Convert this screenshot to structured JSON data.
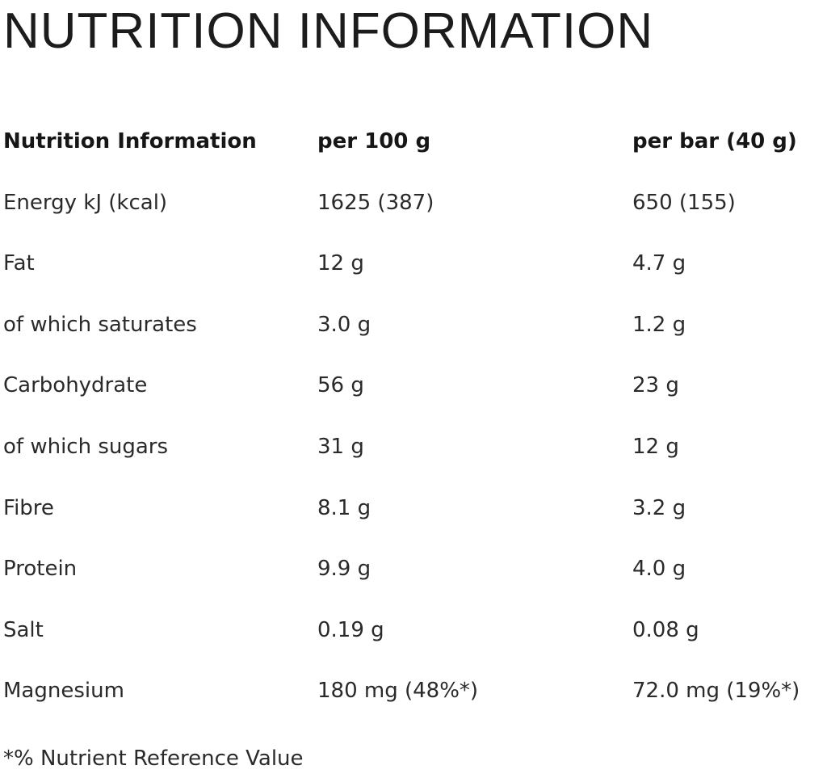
{
  "title": "NUTRITION INFORMATION",
  "table": {
    "headers": [
      "Nutrition Information",
      "per 100 g",
      "per bar (40 g)"
    ],
    "rows": [
      [
        "Energy kJ (kcal)",
        "1625 (387)",
        "650 (155)"
      ],
      [
        "Fat",
        "12 g",
        "4.7 g"
      ],
      [
        "of which saturates",
        "3.0 g",
        "1.2 g"
      ],
      [
        "Carbohydrate",
        "56 g",
        "23 g"
      ],
      [
        "of which sugars",
        "31 g",
        "12 g"
      ],
      [
        "Fibre",
        "8.1 g",
        "3.2 g"
      ],
      [
        "Protein",
        "9.9 g",
        "4.0 g"
      ],
      [
        "Salt",
        "0.19 g",
        "0.08 g"
      ],
      [
        "Magnesium",
        "180 mg (48%*)",
        "72.0 mg (19%*)"
      ]
    ]
  },
  "footnote": "*% Nutrient Reference Value"
}
